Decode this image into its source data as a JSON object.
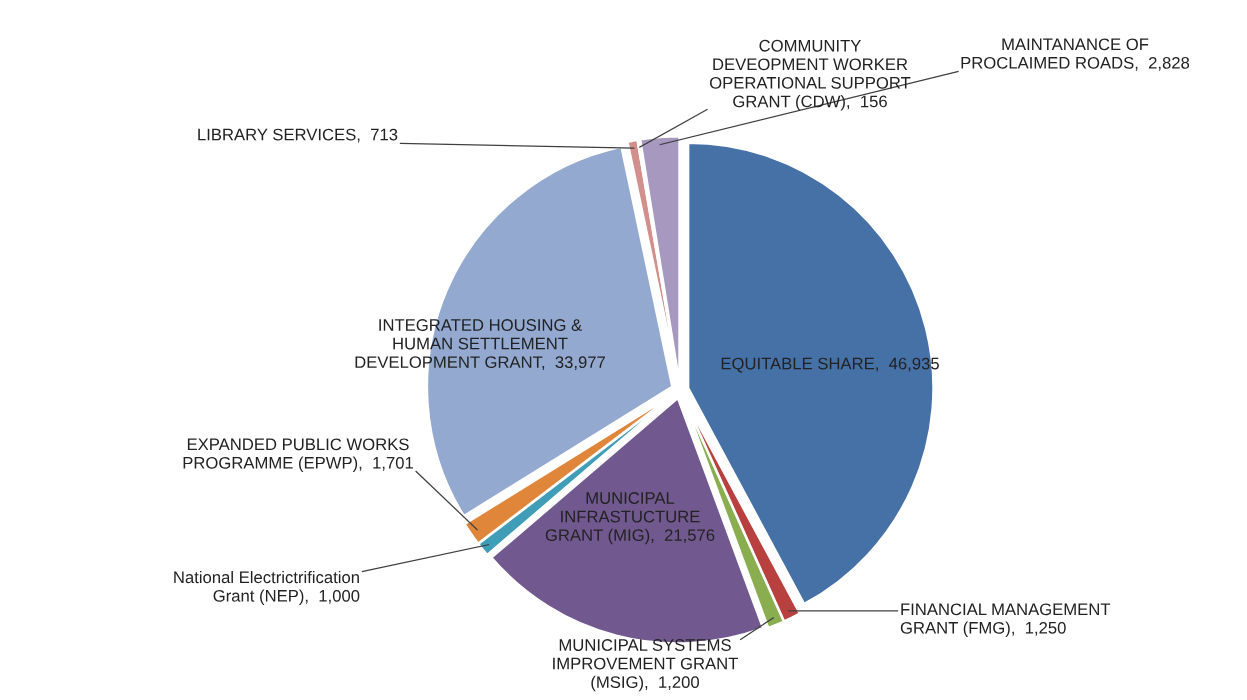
{
  "chart_data": {
    "type": "pie",
    "categories": [
      "EQUITABLE SHARE",
      "FINANCIAL MANAGEMENT\nGRANT (FMG)",
      "MUNICIPAL SYSTEMS\nIMPROVEMENT GRANT\n(MSIG)",
      "MUNICIPAL\nINFRASTUCTURE\nGRANT (MIG)",
      "National Electrictrification\nGrant (NEP)",
      "EXPANDED PUBLIC WORKS\nPROGRAMME (EPWP)",
      "INTEGRATED HOUSING &\nHUMAN SETTLEMENT\nDEVELOPMENT GRANT",
      "LIBRARY SERVICES",
      "COMMUNITY\nDEVEOPMENT WORKER\nOPERATIONAL SUPPORT\nGRANT (CDW)",
      "MAINTANANCE OF\nPROCLAIMED ROADS"
    ],
    "values": [
      46935,
      1250,
      1200,
      21576,
      1000,
      1701,
      33977,
      713,
      156,
      2828
    ],
    "colors": [
      "#4571a7",
      "#b8403e",
      "#8aae4f",
      "#71588f",
      "#3f9db7",
      "#e0863a",
      "#93a9d0",
      "#d38f8c",
      "#b7cf8f",
      "#a698bf"
    ],
    "value_labels": [
      "46,935",
      "1,250",
      "1,200",
      "21,576",
      "1,000",
      "1,701",
      "33,977",
      "713",
      "156",
      "2,828"
    ]
  }
}
